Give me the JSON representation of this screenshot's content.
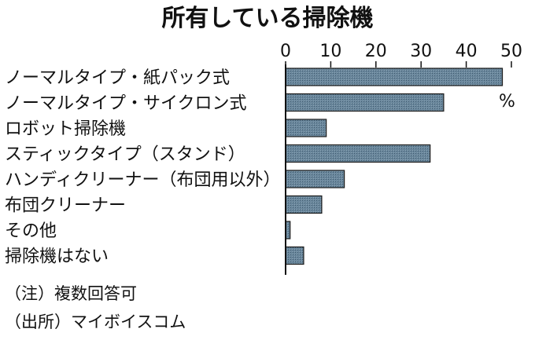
{
  "chart_data": {
    "type": "bar",
    "orientation": "horizontal",
    "title": "所有している掃除機",
    "categories": [
      "ノーマルタイプ・紙パック式",
      "ノーマルタイプ・サイクロン式",
      "ロボット掃除機",
      "スティックタイプ（スタンド）",
      "ハンディクリーナー（布団用以外）",
      "布団クリーナー",
      "その他",
      "掃除機はない"
    ],
    "values": [
      48,
      35,
      9,
      32,
      13,
      8,
      1,
      4
    ],
    "xlim": [
      0,
      50
    ],
    "xticks": [
      0,
      10,
      20,
      30,
      40,
      50
    ],
    "unit": "%",
    "grid": false,
    "bar_color": "#5b7a92",
    "notes": [
      "（注）複数回答可",
      "（出所）マイボイスコム"
    ]
  }
}
